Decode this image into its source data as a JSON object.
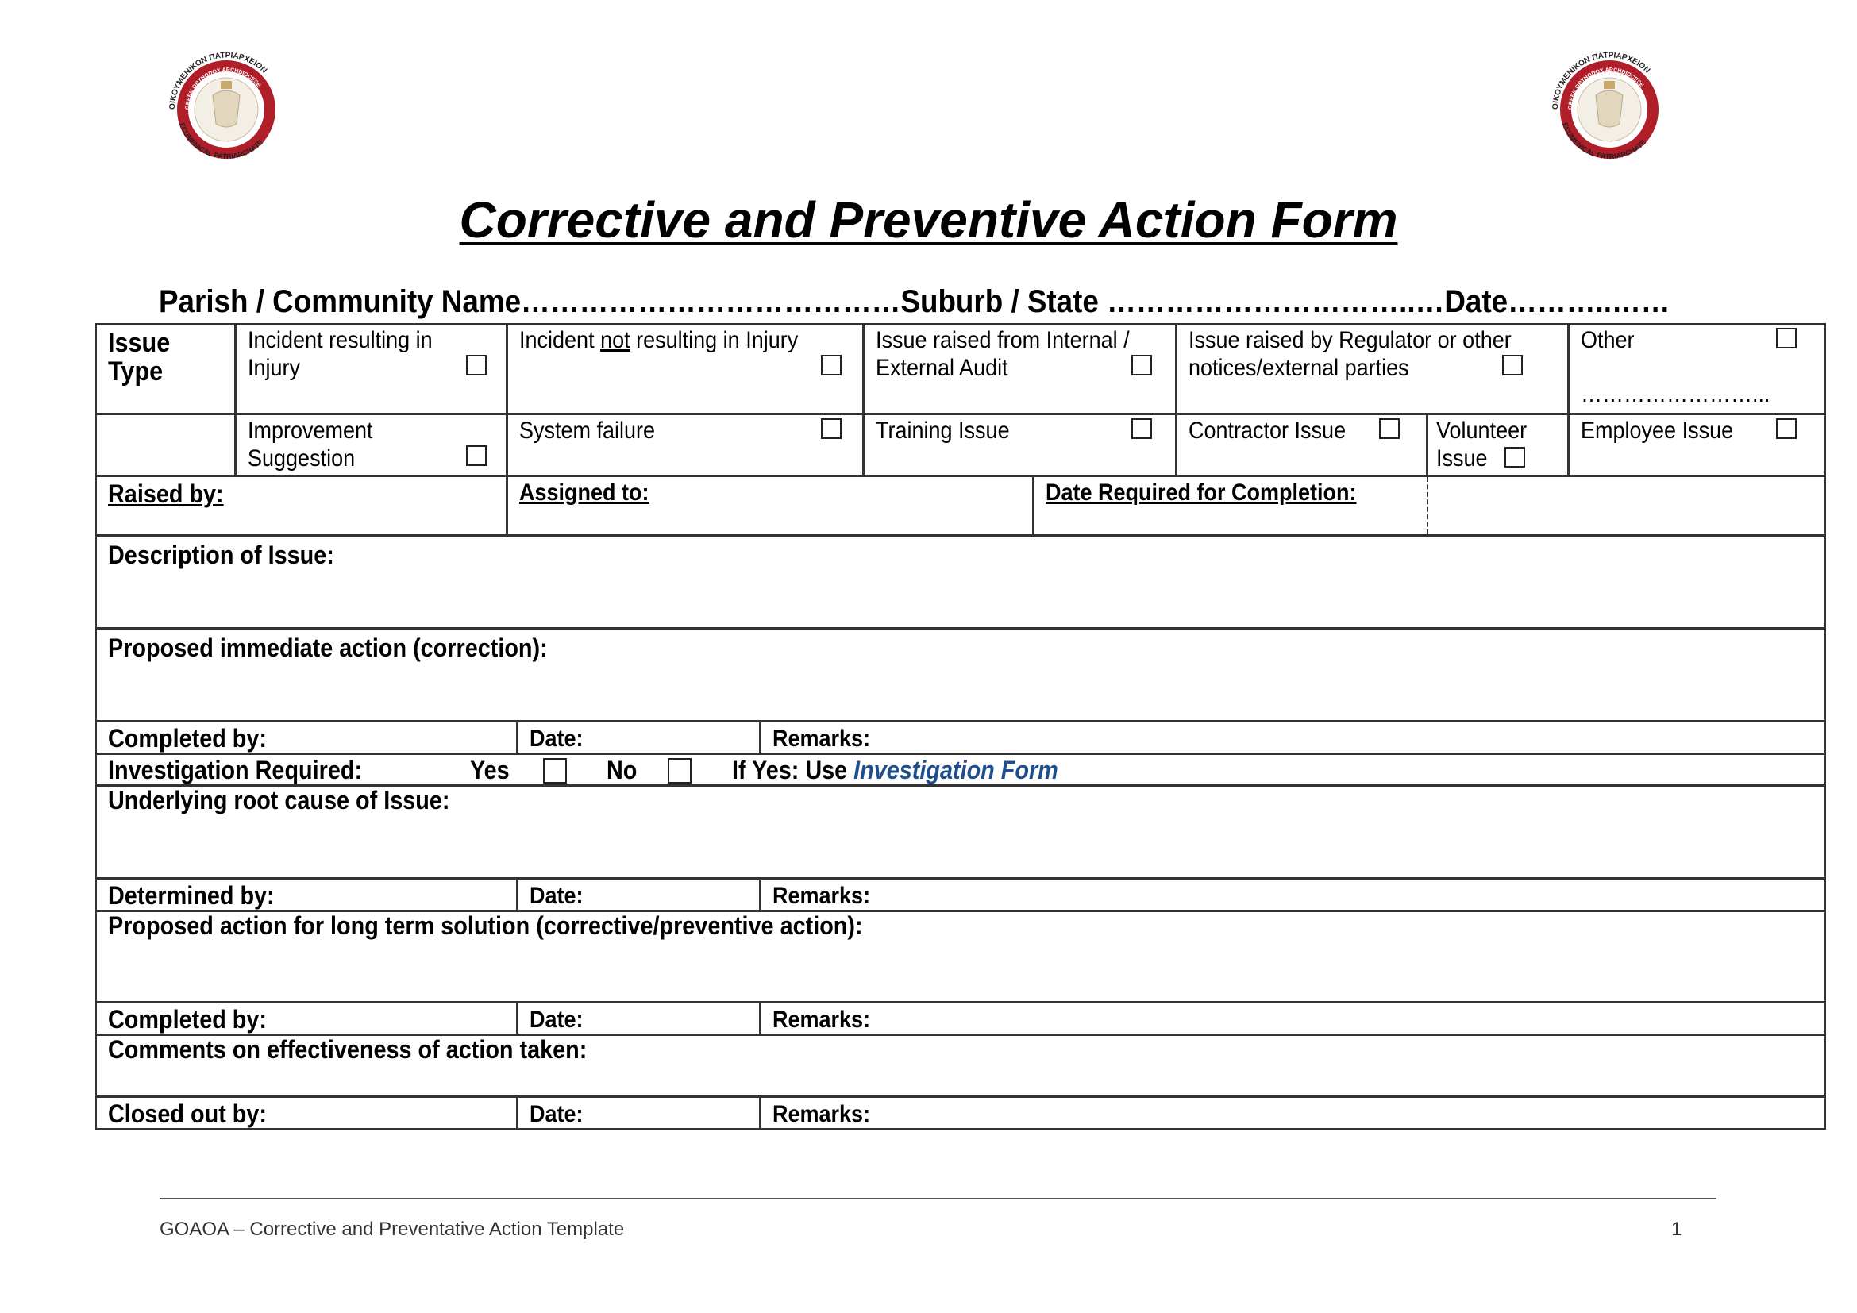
{
  "logo": {
    "outer_text_top": "ΟΙΚΟΥΜΕΝΙΚΟΝ ΠΑΤΡΙΑΡΧΕΙΟΝ",
    "outer_text_bottom": "ECUMENICAL PATRIARCHATE",
    "ring_text": "GREEK ORTHODOX ARCHDIOCESE OF AUSTRALIA",
    "since": "SINCE 1924",
    "ring_color": "#b01e2a"
  },
  "title": "Corrective and Preventive Action Form",
  "header": {
    "parish_label": "Parish / Community Name",
    "parish_dots": "…………………………………",
    "suburb_label": "Suburb / State",
    "suburb_dots": " …………………………..…",
    "date_label": "Date",
    "date_dots": "………..……"
  },
  "issue_type": {
    "label_line1": "Issue",
    "label_line2": "Type",
    "row1": [
      {
        "line1": "Incident  resulting in",
        "line2": "Injury",
        "checked": false
      },
      {
        "line1_pre": "Incident ",
        "line1_u": "not",
        "line1_post": " resulting in Injury",
        "checked": false
      },
      {
        "line1": "Issue raised from Internal /",
        "line2": "External Audit",
        "checked": false
      },
      {
        "line1": "Issue raised by Regulator or other",
        "line2": "notices/external parties",
        "checked": false
      },
      {
        "line1": "Other",
        "dots": "……………………...",
        "checked": false
      }
    ],
    "row2": [
      {
        "line1": "Improvement",
        "line2": "Suggestion",
        "checked": false
      },
      {
        "line1": "System failure",
        "checked": false
      },
      {
        "line1": "Training Issue",
        "checked": false
      },
      {
        "line1": "Contractor Issue",
        "checked": false
      },
      {
        "line1": "Volunteer",
        "line2": "Issue",
        "checked": false
      },
      {
        "line1": "Employee Issue",
        "checked": false
      }
    ]
  },
  "assign": {
    "raised_by": "Raised by:",
    "assigned_to": "Assigned to:",
    "date_required": "Date Required for Completion:"
  },
  "sections": {
    "description": "Description of Issue:",
    "proposed_immediate": "Proposed immediate action (correction):",
    "completed_by_1": "Completed by:",
    "date_1": "Date:",
    "remarks_1": "Remarks:",
    "investigation": "Investigation Required:",
    "yes": "Yes",
    "no": "No",
    "yes_checked": false,
    "no_checked": false,
    "if_yes": "If Yes: Use ",
    "investigation_link": "Investigation Form",
    "link_color": "#1f4e8c",
    "root_cause": "Underlying root cause of Issue:",
    "determined_by": "Determined by:",
    "date_2": "Date:",
    "remarks_2": "Remarks:",
    "long_term": "Proposed action for long term solution (corrective/preventive action):",
    "completed_by_2": "Completed by:",
    "date_3": "Date:",
    "remarks_3": "Remarks:",
    "comments": "Comments on effectiveness of action taken:",
    "closed_out_by": "Closed out by:",
    "date_4": "Date:",
    "remarks_4": "Remarks:"
  },
  "footer": {
    "text": "GOAOA – Corrective and Preventative Action Template",
    "page_number": "1"
  },
  "icons": {
    "checkbox": "checkbox-icon",
    "logo": "archdiocese-seal-logo"
  }
}
